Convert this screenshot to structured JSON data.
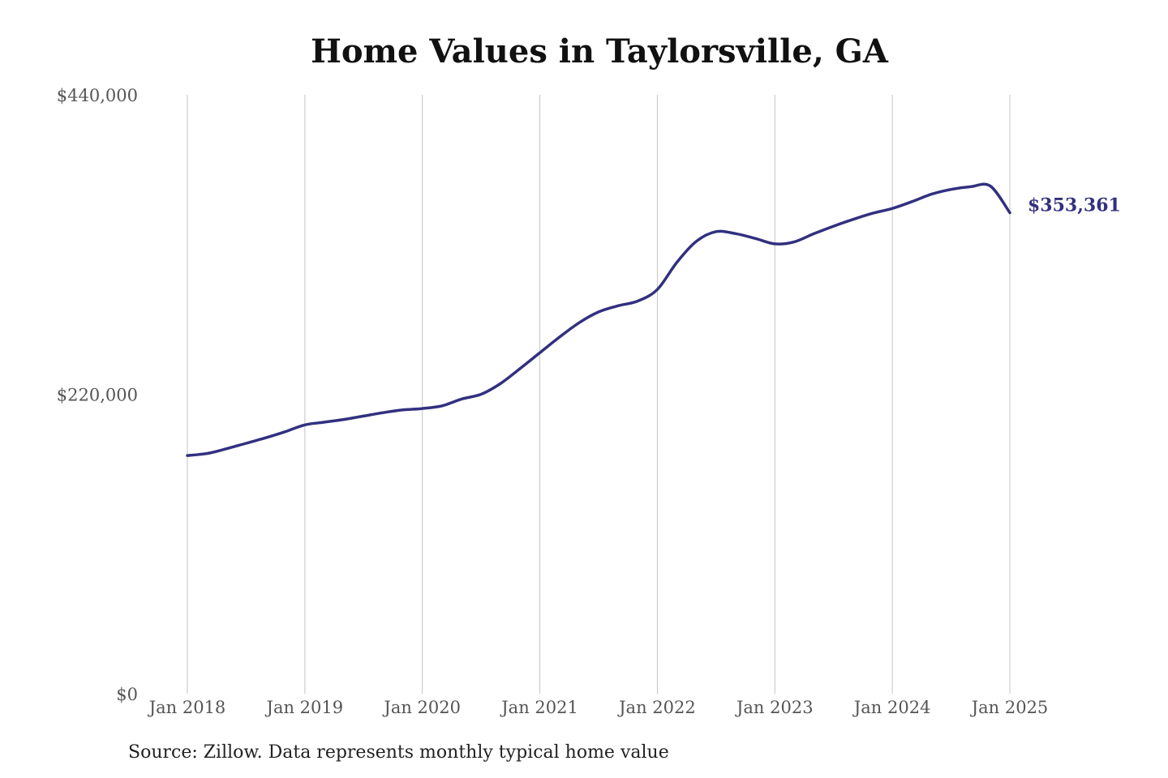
{
  "chart_data": {
    "type": "line",
    "title": "Home Values in Taylorsville, GA",
    "source": "Source: Zillow. Data represents monthly typical home value",
    "xlabel": "",
    "ylabel": "",
    "x_ticks": [
      "Jan 2018",
      "Jan 2019",
      "Jan 2020",
      "Jan 2021",
      "Jan 2022",
      "Jan 2023",
      "Jan 2024",
      "Jan 2025"
    ],
    "x_range": [
      "2018-01",
      "2025-01"
    ],
    "ylim": [
      0,
      440000
    ],
    "y_ticks": [
      {
        "value": 0,
        "label": "$0"
      },
      {
        "value": 220000,
        "label": "$220,000"
      },
      {
        "value": 440000,
        "label": "$440,000"
      }
    ],
    "grid": "vertical",
    "line_color": "#32307f",
    "end_label": "$353,361",
    "series": [
      {
        "name": "",
        "x": [
          "2018-01",
          "2018-03",
          "2018-05",
          "2018-07",
          "2018-09",
          "2018-11",
          "2019-01",
          "2019-03",
          "2019-05",
          "2019-07",
          "2019-09",
          "2019-11",
          "2020-01",
          "2020-03",
          "2020-05",
          "2020-07",
          "2020-09",
          "2020-11",
          "2021-01",
          "2021-03",
          "2021-05",
          "2021-07",
          "2021-09",
          "2021-11",
          "2022-01",
          "2022-03",
          "2022-05",
          "2022-07",
          "2022-09",
          "2022-11",
          "2023-01",
          "2023-03",
          "2023-05",
          "2023-07",
          "2023-09",
          "2023-11",
          "2024-01",
          "2024-03",
          "2024-05",
          "2024-07",
          "2024-09",
          "2024-11",
          "2025-01"
        ],
        "values": [
          175000,
          176500,
          180000,
          184000,
          188000,
          192500,
          197500,
          199500,
          201500,
          204000,
          206500,
          208500,
          209500,
          211500,
          216500,
          220000,
          228000,
          239000,
          250500,
          262000,
          272500,
          280500,
          285000,
          288500,
          297000,
          317000,
          332500,
          339500,
          338000,
          334500,
          330500,
          332000,
          338000,
          343500,
          348500,
          353000,
          356500,
          361500,
          367000,
          370500,
          372500,
          373000,
          353361
        ]
      }
    ]
  }
}
